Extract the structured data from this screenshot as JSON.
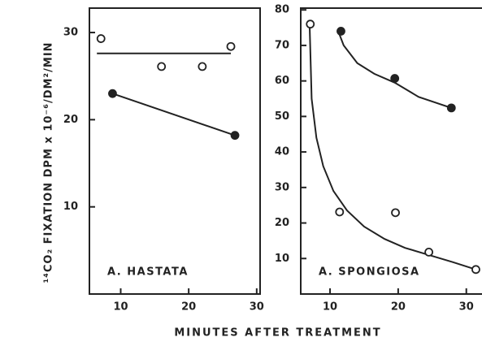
{
  "ylabel": "¹⁴CO₂  FIXATION  DPM x 10⁻⁶/DM²/MIN",
  "xlabel": "MINUTES   AFTER   TREATMENT",
  "chart_data": [
    {
      "type": "scatter",
      "annotation": "A. HASTATA",
      "xlim": [
        5.4,
        30.5
      ],
      "ylim": [
        0,
        32.8
      ],
      "xticks": [
        10,
        20,
        30
      ],
      "yticks": [
        10,
        20,
        30
      ],
      "series": [
        {
          "marker": "open",
          "color": "#222",
          "x": [
            7.1,
            16,
            22,
            26.2
          ],
          "values": [
            29.3,
            26.1,
            26.1,
            28.4
          ]
        },
        {
          "marker": "filled",
          "color": "#222",
          "x": [
            8.8,
            26.8
          ],
          "values": [
            23,
            18.2
          ]
        }
      ],
      "lines": [
        {
          "x": [
            6.5,
            26.2
          ],
          "values": [
            27.6,
            27.6
          ]
        },
        {
          "x": [
            8.8,
            26.8
          ],
          "values": [
            23,
            18.2
          ]
        }
      ]
    },
    {
      "type": "scatter",
      "annotation": "A. SPONGIOSA",
      "xlim": [
        5.7,
        32.3
      ],
      "ylim": [
        0,
        80.5
      ],
      "xticks": [
        10,
        20,
        30
      ],
      "yticks": [
        10,
        20,
        30,
        40,
        50,
        60,
        70,
        80
      ],
      "series": [
        {
          "marker": "open",
          "color": "#222",
          "x": [
            7.1,
            11.4,
            19.6,
            24.5,
            31.4
          ],
          "values": [
            76,
            23.1,
            22.9,
            11.8,
            6.9
          ]
        },
        {
          "marker": "filled",
          "color": "#222",
          "x": [
            11.6,
            19.5,
            27.8
          ],
          "values": [
            74,
            60.7,
            52.4
          ]
        }
      ],
      "lines": [
        {
          "x": [
            7,
            7.3,
            8,
            9,
            10.5,
            12.5,
            15,
            18,
            21,
            24.5,
            28,
            31.4
          ],
          "values": [
            76,
            55,
            44,
            36,
            29,
            23.5,
            19,
            15.5,
            13,
            11,
            9,
            6.9
          ]
        },
        {
          "x": [
            11.2,
            12,
            14,
            16.5,
            19.5,
            23,
            27.8
          ],
          "values": [
            74,
            70,
            65,
            62,
            59.5,
            55.5,
            52.4
          ]
        }
      ]
    }
  ]
}
